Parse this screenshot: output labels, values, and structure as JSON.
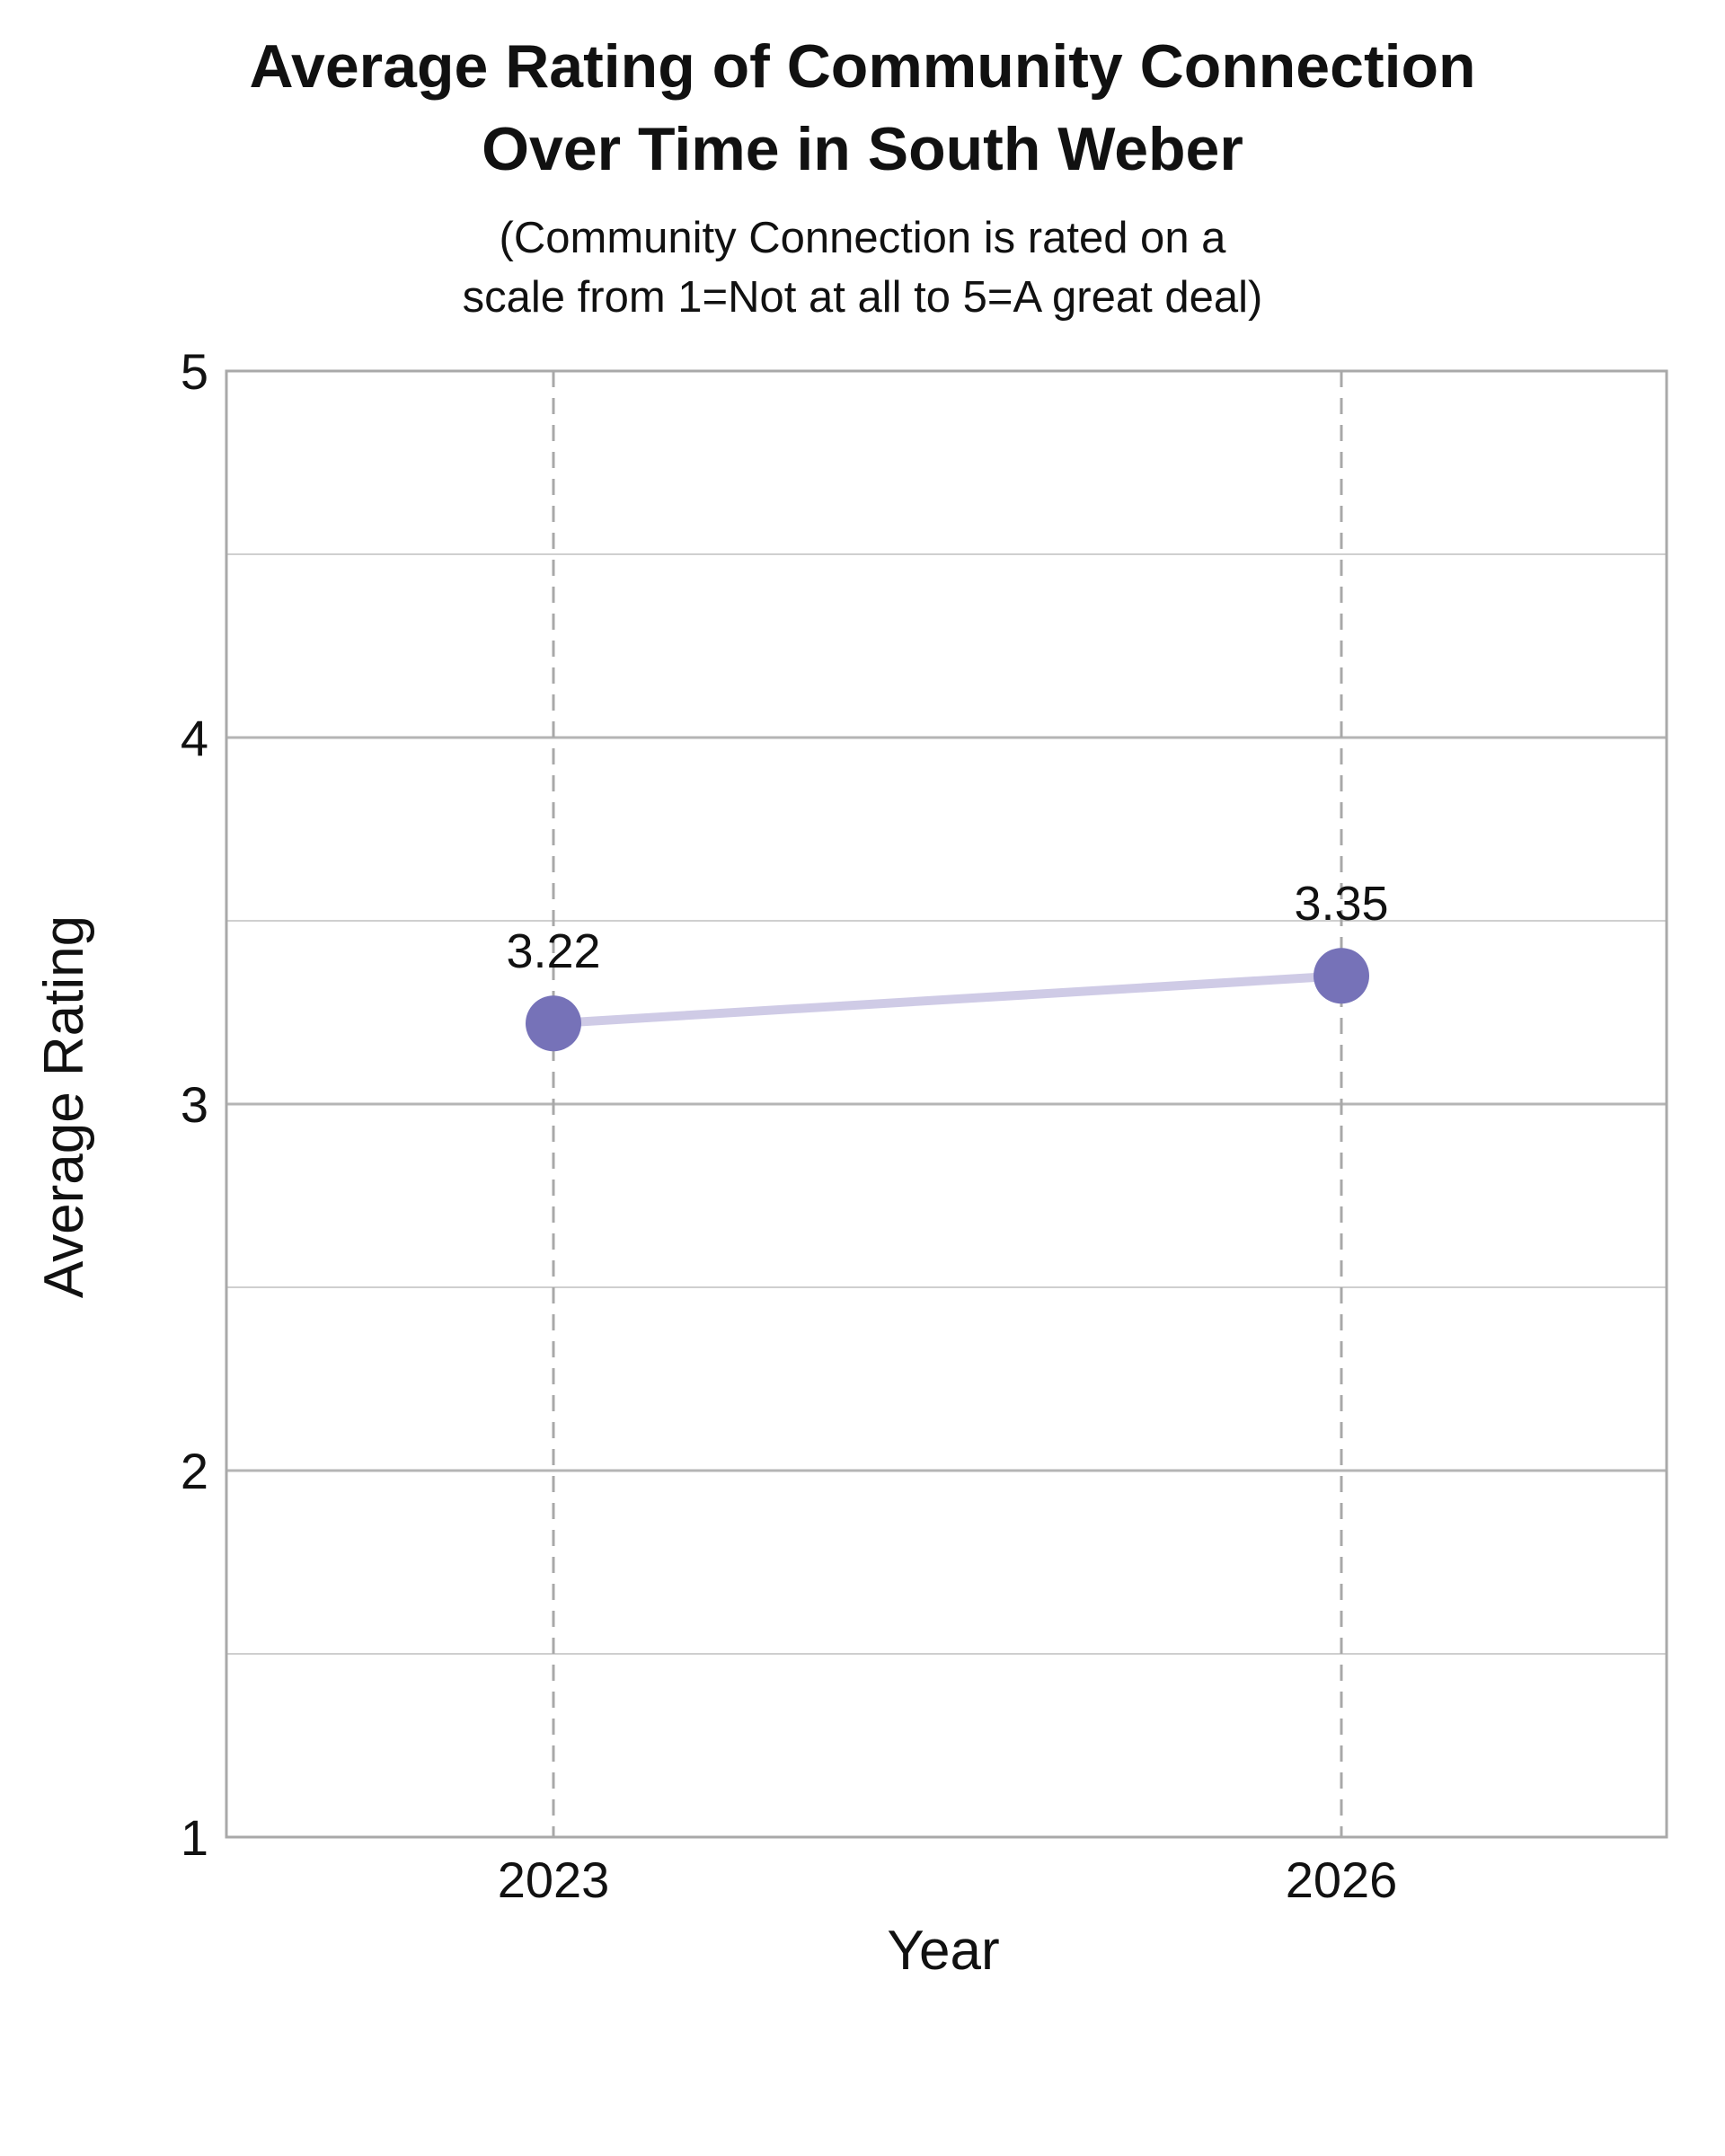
{
  "chart_data": {
    "type": "line",
    "title_lines": [
      "Average Rating of Community Connection",
      "Over Time in South Weber"
    ],
    "subtitle_lines": [
      "(Community Connection is rated on a",
      "scale from 1=Not at all to 5=A great deal)"
    ],
    "xlabel": "Year",
    "ylabel": "Average Rating",
    "categories": [
      "2023",
      "2026"
    ],
    "y_ticks": [
      "1",
      "2",
      "3",
      "4",
      "5"
    ],
    "ylim": [
      1,
      5
    ],
    "grid": true,
    "series": [
      {
        "values": [
          3.22,
          3.35
        ],
        "labels": [
          "3.22",
          "3.35"
        ],
        "marker_color": "#7672b8",
        "line_color": "#cfcbe6"
      }
    ]
  }
}
